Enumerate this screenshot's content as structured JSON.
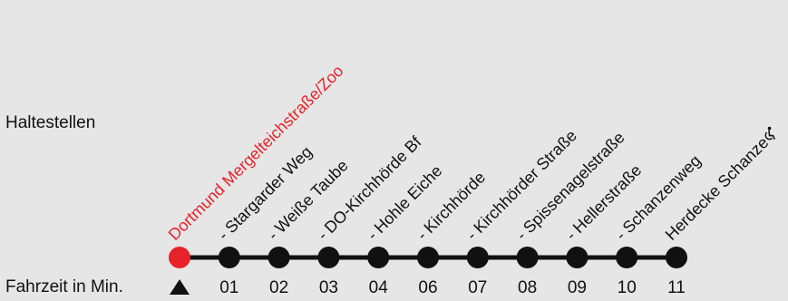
{
  "labels": {
    "haltestellen": "Haltestellen",
    "fahrzeit": "Fahrzeit in Min."
  },
  "colors": {
    "background": "#e6e6e6",
    "line": "#111111",
    "start_stop": "#e8222a",
    "stop": "#111111"
  },
  "icons": {
    "direction_marker": "triangle-up-icon",
    "accessibility": "wheelchair-icon"
  },
  "stops": [
    {
      "name": "Dortmund Mergelteichstraße/Zoo",
      "time": "",
      "start": true
    },
    {
      "name": "- Stargarder Weg",
      "time": "01"
    },
    {
      "name": "- Weiße Taube",
      "time": "02"
    },
    {
      "name": "- DO-Kirchhörde Bf",
      "time": "03"
    },
    {
      "name": "- Hohle Eiche",
      "time": "04"
    },
    {
      "name": "- Kirchhörde",
      "time": "06"
    },
    {
      "name": "- Kirchhörder Straße",
      "time": "07"
    },
    {
      "name": "- Spissenagelstraße",
      "time": "08"
    },
    {
      "name": "- Hellerstraße",
      "time": "09"
    },
    {
      "name": "- Schanzenweg",
      "time": "10"
    },
    {
      "name": "Herdecke Schanze",
      "time": "11",
      "accessible": true
    }
  ]
}
